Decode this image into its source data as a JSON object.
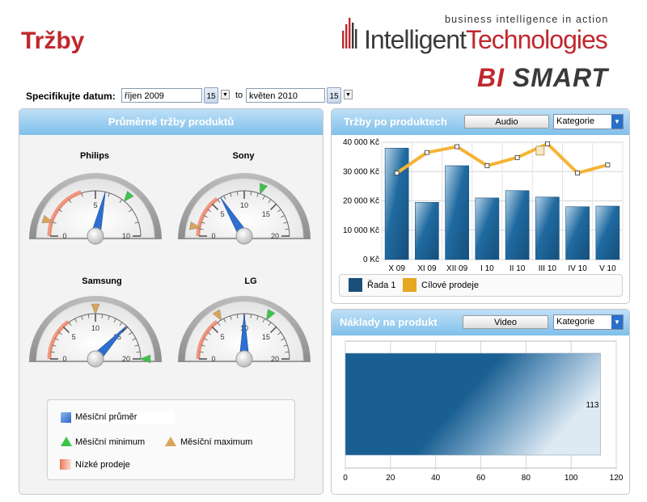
{
  "header": {
    "title": "Tržby",
    "tagline": "business intelligence in action",
    "logo_part1": "Intelligent",
    "logo_part2": "Technologies",
    "bi": "BI",
    "smart": "SMART"
  },
  "date_filter": {
    "label": "Specifikujte datum:",
    "from": "říjen 2009",
    "to_label": "to",
    "to": "květen 2010",
    "calendar_day": "15"
  },
  "gauges_panel": {
    "title": "Průměrné tržby produktů",
    "gauges": [
      {
        "name": "Philips",
        "max": 10,
        "ticks": [
          "0",
          "5",
          "10"
        ],
        "average": 5.7,
        "minimum": 7.2,
        "maximum": 1.0,
        "low_sales_upto": 4.0
      },
      {
        "name": "Sony",
        "max": 20,
        "ticks": [
          "0",
          "5",
          "10",
          "15",
          "20"
        ],
        "average": 6.5,
        "minimum": 12.3,
        "maximum": 1.2,
        "low_sales_upto": 6.0
      },
      {
        "name": "Samsung",
        "max": 20,
        "ticks": [
          "0",
          "5",
          "10",
          "15",
          "20"
        ],
        "average": 14.8,
        "minimum": 20.0,
        "maximum": 10.0,
        "low_sales_upto": 6.0
      },
      {
        "name": "LG",
        "max": 20,
        "ticks": [
          "0",
          "5",
          "10",
          "15",
          "20"
        ],
        "average": 10.0,
        "minimum": 13.3,
        "maximum": 6.6,
        "low_sales_upto": 6.0
      }
    ],
    "legend": {
      "avg": "Měsíční průměr",
      "min": "Měsíční minimum",
      "max": "Měsíční maximum",
      "low": "Nízké prodeje"
    }
  },
  "sales_panel": {
    "title": "Tržby po produktech",
    "button": "Audio",
    "combo": "Kategorie"
  },
  "costs_panel": {
    "title": "Náklady na produkt",
    "button": "Video",
    "combo": "Kategorie"
  },
  "colors": {
    "accent": "#c0282e",
    "bar": "#1a5f92",
    "target": "#f5b335",
    "header": "#8cc8ee"
  },
  "icons": [
    "calendar-icon",
    "dropdown-arrow-icon",
    "logo-bars-icon",
    "diamond-icon",
    "triangle-icon"
  ],
  "chart_data": [
    {
      "type": "bar",
      "categories": [
        "X 09",
        "XI 09",
        "XII 09",
        "I 10",
        "II 10",
        "III 10",
        "IV 10",
        "V 10"
      ],
      "series": [
        {
          "name": "Řada 1",
          "type": "bar",
          "values": [
            38000,
            19500,
            32000,
            21000,
            23500,
            21300,
            18000,
            18200
          ]
        },
        {
          "name": "Cílové prodeje",
          "type": "line",
          "values": [
            29500,
            36500,
            38500,
            32000,
            34800,
            39500,
            29500,
            32300
          ]
        }
      ],
      "yticks": [
        "0 Kč",
        "10 000 Kč",
        "20 000 Kč",
        "30 000 Kč",
        "40 000 Kč"
      ],
      "ylim": [
        0,
        40000
      ],
      "grid": true,
      "legend": "bottom"
    },
    {
      "type": "bar",
      "orientation": "horizontal",
      "values": [
        113
      ],
      "data_labels": [
        "113"
      ],
      "xticks": [
        "0",
        "20",
        "40",
        "60",
        "80",
        "100",
        "120"
      ],
      "xlim": [
        0,
        120
      ],
      "grid": true
    }
  ]
}
